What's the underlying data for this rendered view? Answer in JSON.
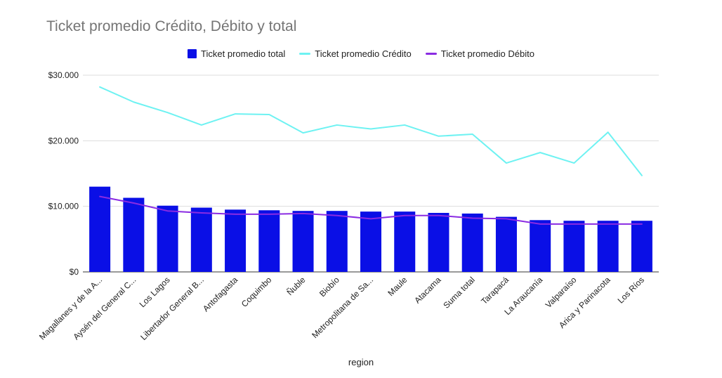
{
  "chart_data": {
    "type": "bar",
    "title": "Ticket promedio Crédito, Débito y total",
    "xlabel": "region",
    "ylabel": "",
    "ylim": [
      0,
      30000
    ],
    "yticks": [
      0,
      10000,
      20000,
      30000
    ],
    "ytick_labels": [
      "$0",
      "$10.000",
      "$20.000",
      "$30.000"
    ],
    "grid": true,
    "legend_position": "top-center",
    "categories": [
      "Magallanes y de la A...",
      "Aysén del General C...",
      "Los Lagos",
      "Libertador General B...",
      "Antofagasta",
      "Coquimbo",
      "Ñuble",
      "Biobío",
      "Metropolitana de Sa...",
      "Maule",
      "Atacama",
      "Suma total",
      "Tarapacá",
      "La Araucanía",
      "Valparaíso",
      "Arica y Parinacota",
      "Los Ríos"
    ],
    "series": [
      {
        "name": "Ticket promedio total",
        "type": "bar",
        "color": "#0a0fe6",
        "values": [
          13000,
          11300,
          10100,
          9800,
          9500,
          9400,
          9300,
          9300,
          9200,
          9200,
          9000,
          8900,
          8400,
          7900,
          7800,
          7800,
          7800
        ]
      },
      {
        "name": "Ticket promedio Crédito",
        "type": "line",
        "color": "#6ef2f2",
        "values": [
          28200,
          25900,
          24300,
          22400,
          24100,
          24000,
          21200,
          22400,
          21800,
          22400,
          20700,
          21000,
          16600,
          18200,
          16600,
          21300,
          14700
        ]
      },
      {
        "name": "Ticket promedio Débito",
        "type": "line",
        "color": "#8a2be2",
        "values": [
          11500,
          10500,
          9300,
          9000,
          8800,
          8800,
          8900,
          8600,
          8100,
          8600,
          8600,
          8200,
          8100,
          7300,
          7300,
          7300,
          7300
        ]
      }
    ]
  }
}
